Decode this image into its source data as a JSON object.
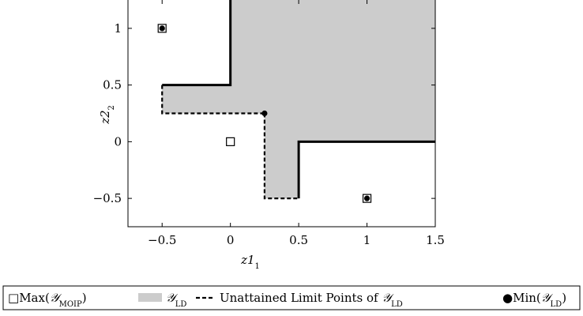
{
  "chart_data": {
    "type": "scatter",
    "title": "",
    "xlabel": "z1",
    "xlabel_sub": "1",
    "ylabel": "z2",
    "ylabel_sub": "2",
    "xlim": [
      -0.75,
      1.5
    ],
    "ylim": [
      -0.75,
      1.25
    ],
    "grid": false,
    "legend_position": "bottom",
    "xticks": [
      {
        "value": -0.5,
        "label": "−0.5"
      },
      {
        "value": 0,
        "label": "0"
      },
      {
        "value": 0.5,
        "label": "0.5"
      },
      {
        "value": 1,
        "label": "1"
      },
      {
        "value": 1.5,
        "label": "1.5"
      }
    ],
    "yticks": [
      {
        "value": -0.5,
        "label": "−0.5"
      },
      {
        "value": 0,
        "label": "0"
      },
      {
        "value": 0.5,
        "label": "0.5"
      },
      {
        "value": 1,
        "label": "1"
      }
    ],
    "region": {
      "name": "𝒴LD",
      "color": "#cccccc",
      "polygon": [
        [
          0,
          1.25
        ],
        [
          0,
          0.5
        ],
        [
          -0.5,
          0.5
        ],
        [
          -0.5,
          0.25
        ],
        [
          0.25,
          0.25
        ],
        [
          0.25,
          -0.5
        ],
        [
          0.5,
          -0.5
        ],
        [
          0.5,
          0
        ],
        [
          1.5,
          0
        ],
        [
          1.5,
          1.25
        ]
      ]
    },
    "boundary_solid": [
      [
        [
          0,
          1.25
        ],
        [
          0,
          0.5
        ],
        [
          -0.5,
          0.5
        ]
      ],
      [
        [
          0.5,
          -0.5
        ],
        [
          0.5,
          0
        ],
        [
          1.5,
          0
        ]
      ]
    ],
    "boundary_dashed": [
      [
        [
          -0.5,
          0.5
        ],
        [
          -0.5,
          0.25
        ],
        [
          0.25,
          0.25
        ]
      ],
      [
        [
          0.25,
          0.25
        ],
        [
          0.25,
          -0.5
        ],
        [
          0.5,
          -0.5
        ]
      ]
    ],
    "max_points": [
      [
        -0.5,
        1
      ],
      [
        0,
        0
      ],
      [
        1,
        -0.5
      ]
    ],
    "min_points": [
      [
        -0.5,
        1
      ],
      [
        0.25,
        0.25
      ],
      [
        1,
        -0.5
      ]
    ],
    "legend": [
      {
        "key": "max",
        "symbol": "□",
        "text": "Max(",
        "script": "𝒴",
        "sub": "MOIP",
        "close": ")"
      },
      {
        "key": "region",
        "text": "",
        "script": "𝒴",
        "sub": "LD",
        "close": ""
      },
      {
        "key": "dashed",
        "text": "Unattained Limit Points of ",
        "script": "𝒴",
        "sub": "LD",
        "close": ""
      },
      {
        "key": "min",
        "symbol": "●",
        "text": "Min(",
        "script": "𝒴",
        "sub": "LD",
        "close": ")"
      }
    ]
  }
}
